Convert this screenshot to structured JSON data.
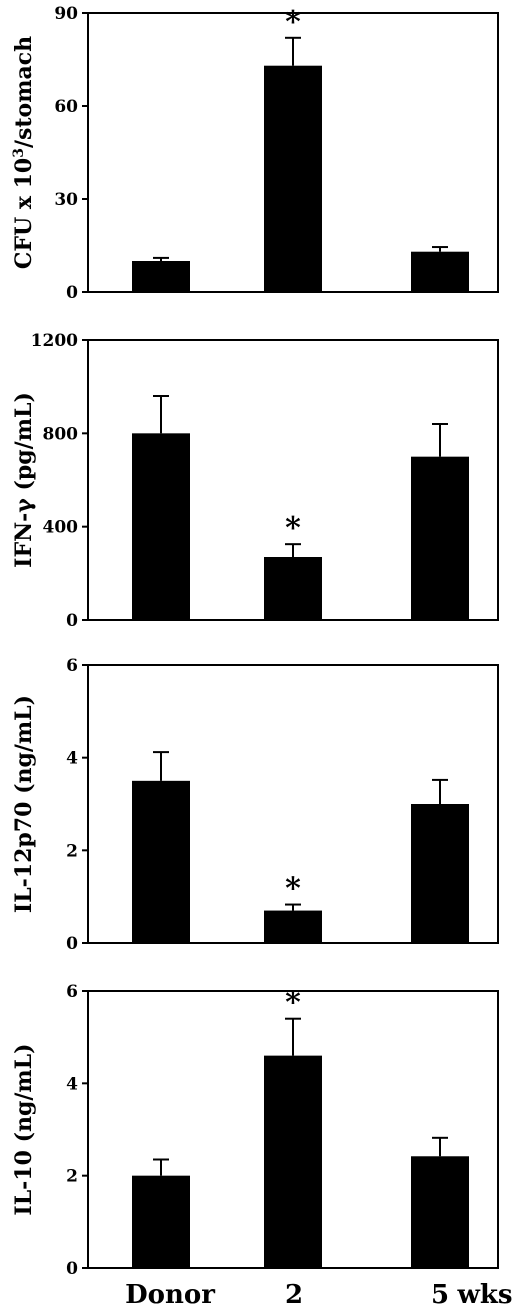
{
  "chart_data": [
    {
      "type": "bar",
      "ylabel_prefix": "CFU x 10",
      "ylabel_sup": "3",
      "ylabel_suffix": "/stomach",
      "ylim": [
        0,
        90
      ],
      "yticks": [
        "0",
        "30",
        "60",
        "90"
      ],
      "categories": [
        "Donor",
        "2",
        "5"
      ],
      "values": [
        10,
        73,
        13
      ],
      "errors": [
        1,
        9,
        1.5
      ],
      "significant": [
        false,
        true,
        false
      ],
      "annotation": "*"
    },
    {
      "type": "bar",
      "ylabel": "IFN-γ (pg/mL)",
      "ylim": [
        0,
        1200
      ],
      "yticks": [
        "0",
        "400",
        "800",
        "1200"
      ],
      "categories": [
        "Donor",
        "2",
        "5"
      ],
      "values": [
        800,
        270,
        700
      ],
      "errors": [
        160,
        55,
        140
      ],
      "significant": [
        false,
        true,
        false
      ],
      "annotation": "*"
    },
    {
      "type": "bar",
      "ylabel": "IL-12p70 (ng/mL)",
      "ylim": [
        0,
        6
      ],
      "yticks": [
        "0",
        "2",
        "4",
        "6"
      ],
      "categories": [
        "Donor",
        "2",
        "5"
      ],
      "values": [
        3.5,
        0.7,
        3.0
      ],
      "errors": [
        0.62,
        0.13,
        0.52
      ],
      "significant": [
        false,
        true,
        false
      ],
      "annotation": "*"
    },
    {
      "type": "bar",
      "ylabel": "IL-10 (ng/mL)",
      "ylim": [
        0,
        6
      ],
      "yticks": [
        "0",
        "2",
        "4",
        "6"
      ],
      "categories": [
        "Donor",
        "2",
        "5"
      ],
      "values": [
        2.0,
        4.6,
        2.42
      ],
      "errors": [
        0.35,
        0.8,
        0.4
      ],
      "significant": [
        false,
        true,
        false
      ],
      "annotation": "*"
    }
  ],
  "x_axis": {
    "labels": [
      "Donor",
      "2",
      "5",
      "wks"
    ]
  },
  "colors": {
    "bar": "#000000",
    "axis": "#000000",
    "background": "#ffffff"
  }
}
